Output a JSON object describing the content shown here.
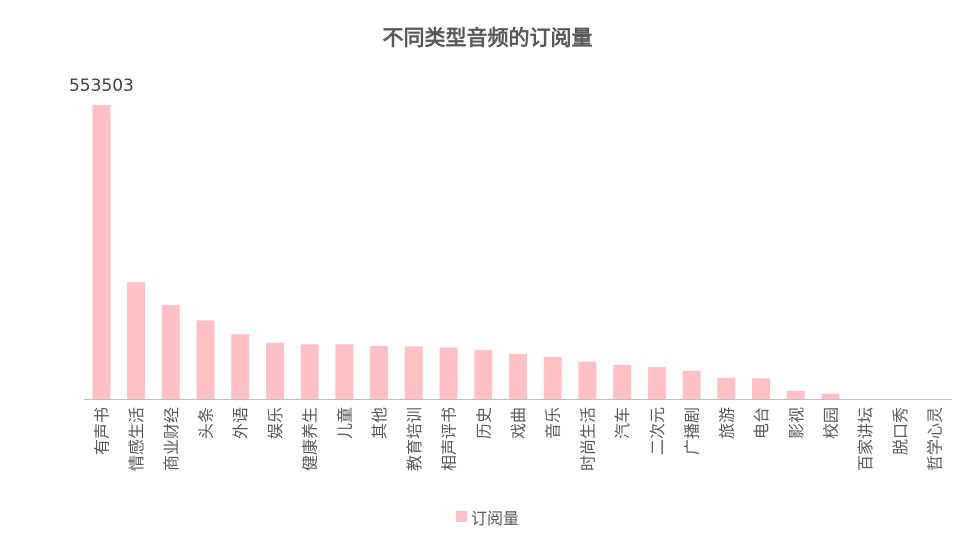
{
  "chart_data": {
    "type": "bar",
    "title": "不同类型音频的订阅量",
    "categories": [
      "有声书",
      "情感生活",
      "商业财经",
      "头条",
      "外语",
      "娱乐",
      "健康养生",
      "儿童",
      "其他",
      "教育培训",
      "相声评书",
      "历史",
      "戏曲",
      "音乐",
      "时尚生活",
      "汽车",
      "二次元",
      "广播剧",
      "旅游",
      "电台",
      "影视",
      "校园",
      "百家讲坛",
      "脱口秀",
      "哲学心灵"
    ],
    "series": [
      {
        "name": "订阅量",
        "color": "#ffc0c6",
        "values": [
          553503,
          220000,
          177000,
          148000,
          122000,
          106000,
          103000,
          103000,
          100000,
          99000,
          97000,
          92000,
          85000,
          79000,
          70000,
          64000,
          60000,
          53000,
          40000,
          39000,
          15000,
          10000,
          0,
          0,
          0
        ]
      }
    ],
    "data_labels": [
      {
        "category": "有声书",
        "text": "553503"
      }
    ],
    "ylim": [
      0,
      553503
    ],
    "grid": false,
    "legend_position": "bottom",
    "axis_color": "#bfbfbf",
    "text_color": "#595959"
  }
}
